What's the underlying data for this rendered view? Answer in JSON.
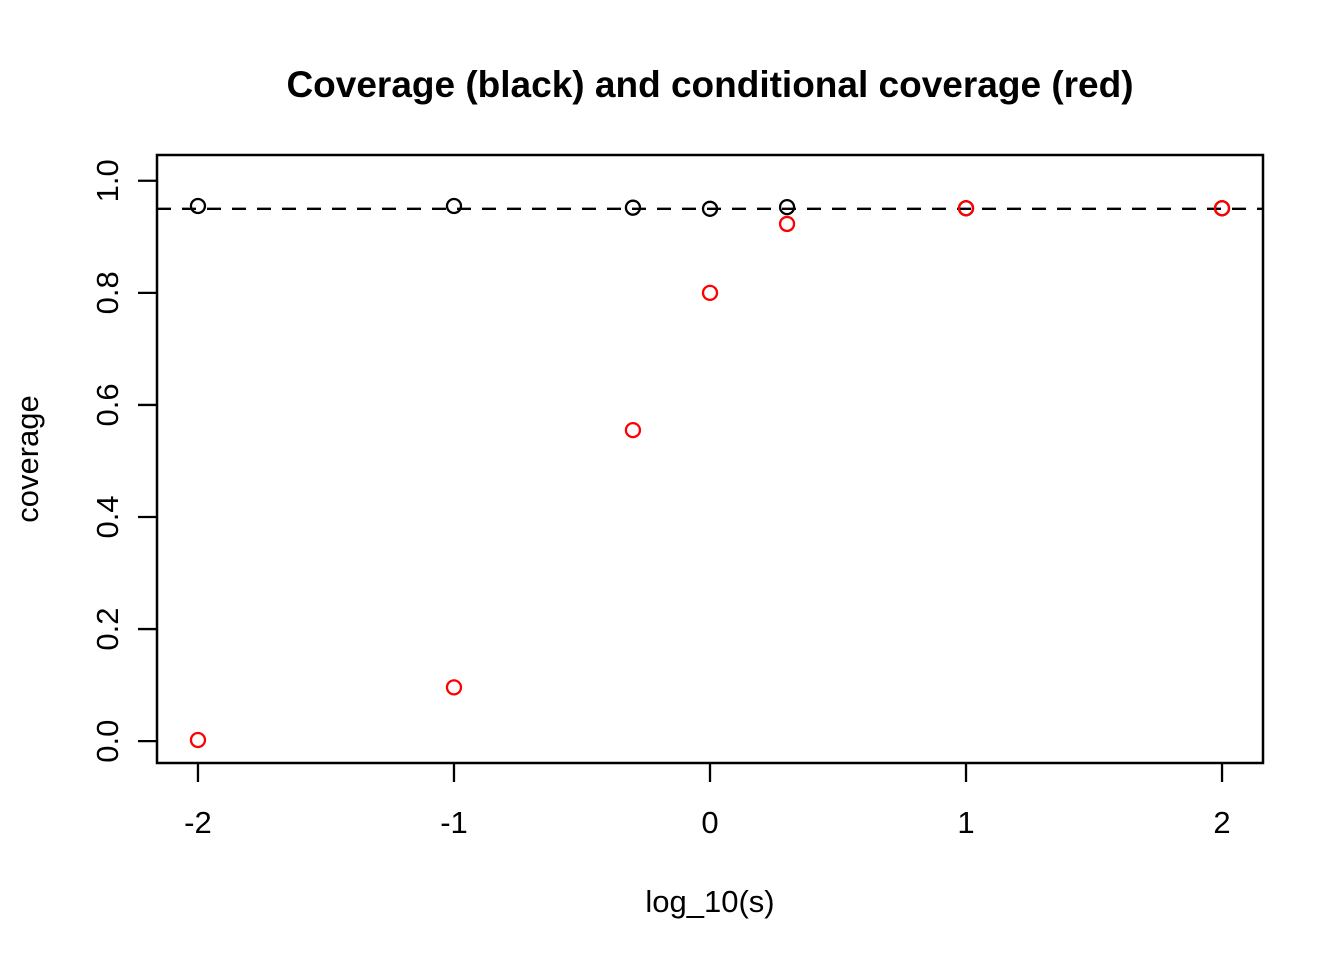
{
  "chart_data": {
    "type": "scatter",
    "title": "Coverage (black) and conditional coverage (red)",
    "xlabel": "log_10(s)",
    "ylabel": "coverage",
    "x_range": [
      -2.16,
      2.16
    ],
    "y_range": [
      -0.039,
      1.046
    ],
    "grid": false,
    "legend": "none (colors explained in title)",
    "x_ticks": [
      {
        "value": -2,
        "label": "-2"
      },
      {
        "value": -1,
        "label": "-1"
      },
      {
        "value": 0,
        "label": "0"
      },
      {
        "value": 1,
        "label": "1"
      },
      {
        "value": 2,
        "label": "2"
      }
    ],
    "y_ticks": [
      {
        "value": 0.0,
        "label": "0.0"
      },
      {
        "value": 0.2,
        "label": "0.2"
      },
      {
        "value": 0.4,
        "label": "0.4"
      },
      {
        "value": 0.6,
        "label": "0.6"
      },
      {
        "value": 0.8,
        "label": "0.8"
      },
      {
        "value": 1.0,
        "label": "1.0"
      }
    ],
    "reference_line": {
      "y": 0.95,
      "style": "dashed",
      "color": "#000000"
    },
    "marker": {
      "shape": "open-circle",
      "radius": 7,
      "stroke_width": 2.3
    },
    "series": [
      {
        "name": "coverage",
        "color": "#000000",
        "x": [
          -2,
          -1,
          -0.301,
          0,
          0.301,
          1,
          2
        ],
        "y": [
          0.955,
          0.955,
          0.952,
          0.95,
          0.953,
          0.951,
          0.951
        ]
      },
      {
        "name": "conditional coverage",
        "color": "#ff0000",
        "x": [
          -2,
          -1,
          -0.301,
          0,
          0.301,
          1,
          2
        ],
        "y": [
          0.002,
          0.096,
          0.555,
          0.8,
          0.923,
          0.951,
          0.951
        ]
      }
    ]
  }
}
